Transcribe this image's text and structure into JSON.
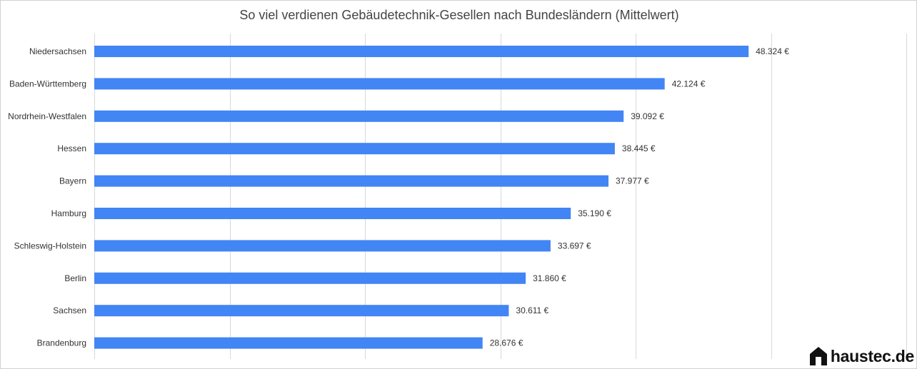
{
  "title": "So viel verdienen Gebäudetechnik-Gesellen nach Bundesländern (Mittelwert)",
  "logo": {
    "text": "haustec.de",
    "icon": "house-icon"
  },
  "colors": {
    "bar": "#4285f4",
    "grid": "#d9d9d9",
    "text": "#333333"
  },
  "chart_data": {
    "type": "bar",
    "orientation": "horizontal",
    "title": "So viel verdienen Gebäudetechnik-Gesellen nach Bundesländern (Mittelwert)",
    "xlabel": "",
    "ylabel": "",
    "xlim": [
      0,
      50000
    ],
    "grid": true,
    "legend": "none",
    "categories": [
      "Niedersachsen",
      "Baden-Württemberg",
      "Nordrhein-Westfalen",
      "Hessen",
      "Bayern",
      "Hamburg",
      "Schleswig-Holstein",
      "Berlin",
      "Sachsen",
      "Brandenburg"
    ],
    "values": [
      48324,
      42124,
      39092,
      38445,
      37977,
      35190,
      33697,
      31860,
      30611,
      28676
    ],
    "value_labels": [
      "48.324 €",
      "42.124 €",
      "39.092 €",
      "38.445 €",
      "37.977 €",
      "35.190 €",
      "33.697 €",
      "31.860 €",
      "30.611 €",
      "28.676 €"
    ]
  }
}
